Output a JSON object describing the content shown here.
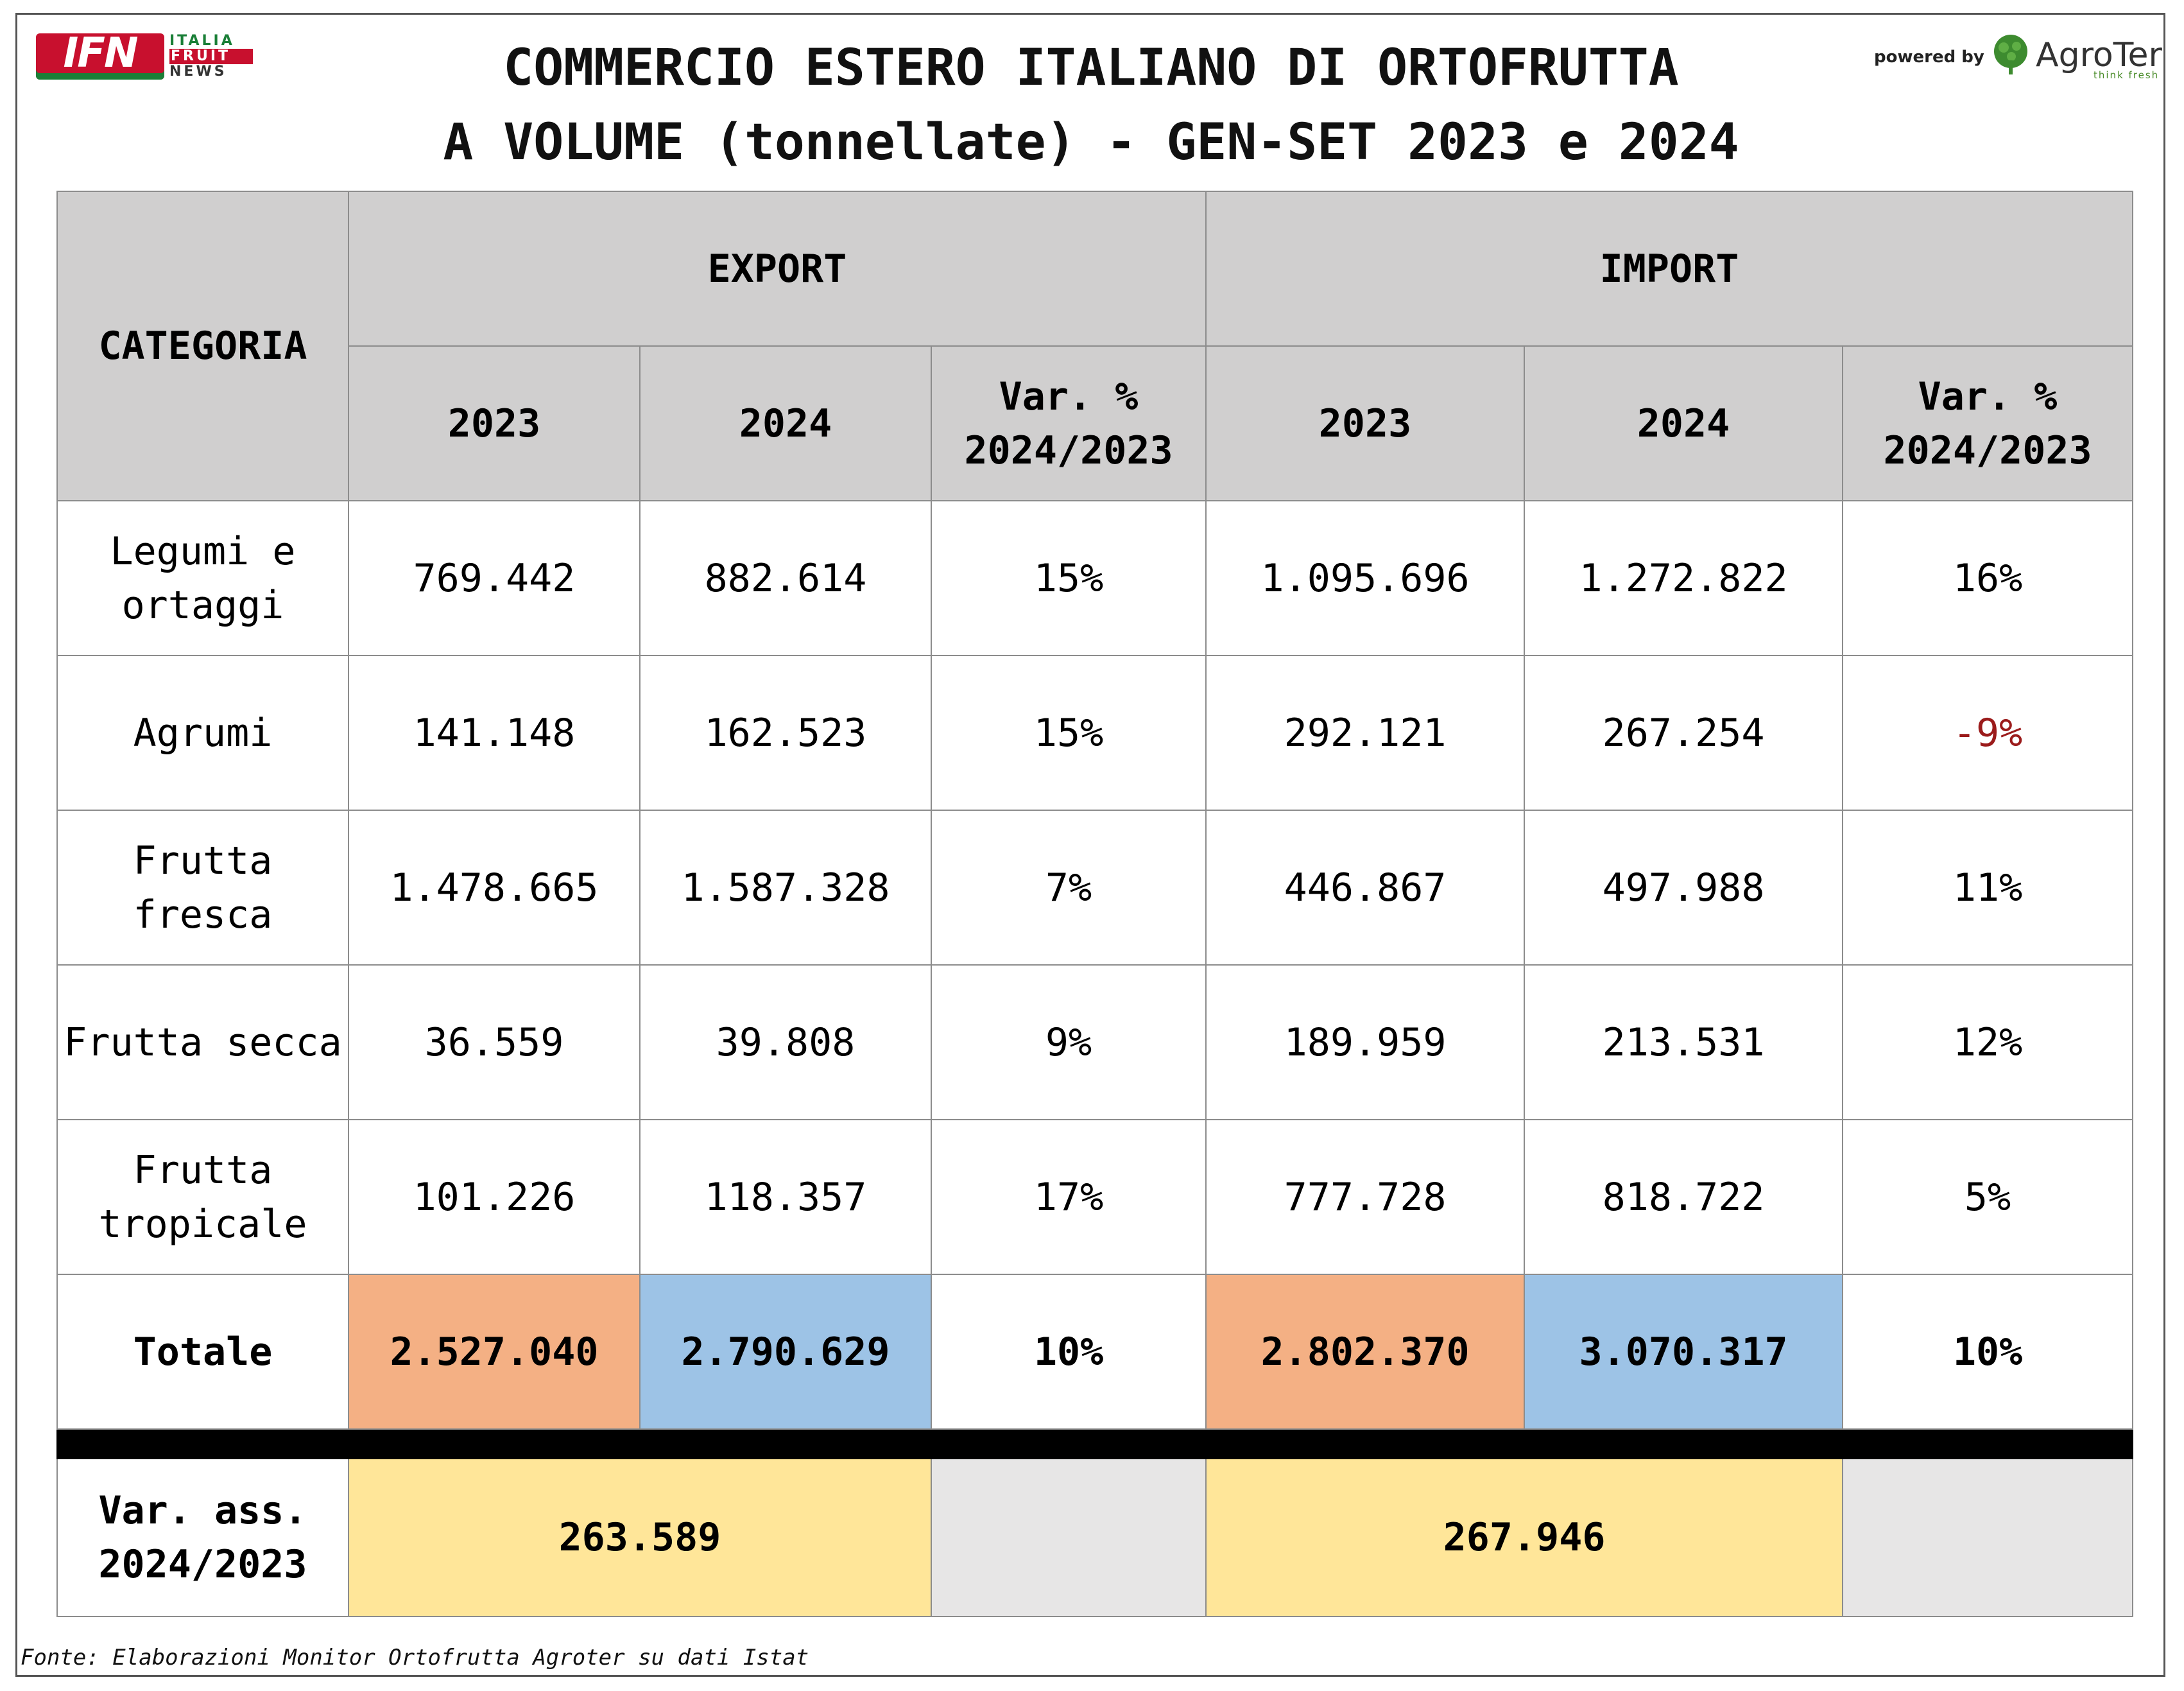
{
  "header": {
    "logo_main": "IFN",
    "logo_sub": [
      "ITALIA",
      "FRUIT",
      "NEWS"
    ],
    "title_line1": "COMMERCIO ESTERO ITALIANO DI ORTOFRUTTA",
    "title_line2": "A VOLUME (tonnellate) - GEN-SET 2023 e 2024",
    "powered_by": "powered by",
    "brand": "AgroTer",
    "brand_tagline": "think fresh"
  },
  "table": {
    "category_header": "CATEGORIA",
    "export_header": "EXPORT",
    "import_header": "IMPORT",
    "sub_headers": [
      "2023",
      "2024",
      "Var. % 2024/2023",
      "2023",
      "2024",
      "Var. % 2024/2023"
    ],
    "rows": [
      {
        "category": "Legumi e ortaggi",
        "exp_2023": "769.442",
        "exp_2024": "882.614",
        "exp_var": "15%",
        "imp_2023": "1.095.696",
        "imp_2024": "1.272.822",
        "imp_var": "16%"
      },
      {
        "category": "Agrumi",
        "exp_2023": "141.148",
        "exp_2024": "162.523",
        "exp_var": "15%",
        "imp_2023": "292.121",
        "imp_2024": "267.254",
        "imp_var": "-9%"
      },
      {
        "category": "Frutta fresca",
        "exp_2023": "1.478.665",
        "exp_2024": "1.587.328",
        "exp_var": "7%",
        "imp_2023": "446.867",
        "imp_2024": "497.988",
        "imp_var": "11%"
      },
      {
        "category": "Frutta secca",
        "exp_2023": "36.559",
        "exp_2024": "39.808",
        "exp_var": "9%",
        "imp_2023": "189.959",
        "imp_2024": "213.531",
        "imp_var": "12%"
      },
      {
        "category": "Frutta tropicale",
        "exp_2023": "101.226",
        "exp_2024": "118.357",
        "exp_var": "17%",
        "imp_2023": "777.728",
        "imp_2024": "818.722",
        "imp_var": "5%"
      }
    ],
    "total": {
      "label": "Totale",
      "exp_2023": "2.527.040",
      "exp_2024": "2.790.629",
      "exp_var": "10%",
      "imp_2023": "2.802.370",
      "imp_2024": "3.070.317",
      "imp_var": "10%"
    },
    "abs_var": {
      "label": "Var. ass. 2024/2023",
      "export": "263.589",
      "import": "267.946"
    }
  },
  "colors": {
    "header_gray": "#d0cfcf",
    "orange_2023": "#f4b084",
    "blue_2024": "#9dc3e6",
    "yellow_abs": "#ffe699",
    "negative_red": "#9b1b1b"
  },
  "footer": {
    "source": "Fonte: Elaborazioni Monitor Ortofrutta Agroter su dati Istat"
  }
}
